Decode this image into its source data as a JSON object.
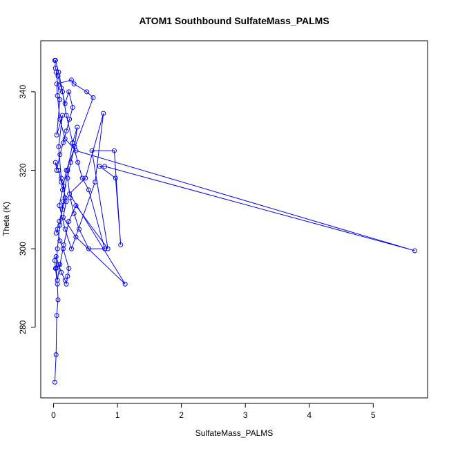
{
  "chart_data": {
    "type": "line",
    "title": "ATOM1 Southbound SulfateMass_PALMS",
    "xlabel": "SulfateMass_PALMS",
    "ylabel": "Theta (K)",
    "xlim": [
      -0.2,
      5.85
    ],
    "ylim": [
      262,
      353
    ],
    "x_ticks": [
      0,
      1,
      2,
      3,
      4,
      5
    ],
    "y_ticks": [
      280,
      300,
      320,
      340
    ],
    "x_tick_labels": [
      "0",
      "1",
      "2",
      "3",
      "4",
      "5"
    ],
    "y_tick_labels": [
      "280",
      "300",
      "320",
      "340"
    ],
    "series": [
      {
        "color": "#0000ff",
        "marker": "open-circle",
        "points": [
          [
            0.02,
            266
          ],
          [
            0.04,
            273
          ],
          [
            0.05,
            283
          ],
          [
            0.07,
            287
          ],
          [
            0.06,
            291
          ],
          [
            0.03,
            295
          ],
          [
            0.02,
            297
          ],
          [
            0.04,
            298
          ],
          [
            0.08,
            296
          ],
          [
            0.12,
            294
          ],
          [
            0.18,
            292
          ],
          [
            0.2,
            291
          ],
          [
            0.22,
            293
          ],
          [
            0.24,
            295
          ],
          [
            0.15,
            300
          ],
          [
            0.1,
            302
          ],
          [
            0.06,
            305
          ],
          [
            0.04,
            304
          ],
          [
            0.09,
            307
          ],
          [
            0.14,
            310
          ],
          [
            0.18,
            313
          ],
          [
            0.16,
            316
          ],
          [
            0.12,
            317
          ],
          [
            0.08,
            320
          ],
          [
            0.03,
            322
          ],
          [
            0.05,
            320
          ],
          [
            0.1,
            324
          ],
          [
            0.15,
            327
          ],
          [
            0.2,
            330
          ],
          [
            0.25,
            333
          ],
          [
            0.3,
            336
          ],
          [
            0.24,
            340
          ],
          [
            0.18,
            337
          ],
          [
            0.12,
            341
          ],
          [
            0.07,
            344
          ],
          [
            0.03,
            346
          ],
          [
            0.02,
            348
          ],
          [
            0.03,
            348
          ],
          [
            0.08,
            345
          ],
          [
            0.14,
            340
          ],
          [
            0.2,
            334
          ],
          [
            0.3,
            327
          ],
          [
            0.38,
            322
          ],
          [
            0.45,
            318
          ],
          [
            0.55,
            315
          ],
          [
            0.8,
            300
          ],
          [
            0.55,
            300
          ],
          [
            0.4,
            305
          ],
          [
            0.32,
            309
          ],
          [
            0.26,
            313
          ],
          [
            0.22,
            318
          ],
          [
            0.27,
            322
          ],
          [
            0.33,
            326
          ],
          [
            0.37,
            331
          ],
          [
            0.3,
            327
          ],
          [
            0.22,
            320
          ],
          [
            0.15,
            312
          ],
          [
            0.1,
            306
          ],
          [
            0.06,
            300
          ],
          [
            0.04,
            295
          ],
          [
            0.06,
            292
          ],
          [
            0.1,
            296
          ],
          [
            0.16,
            301
          ],
          [
            0.24,
            307
          ],
          [
            0.35,
            311
          ],
          [
            0.85,
            300
          ],
          [
            0.6,
            325
          ],
          [
            0.95,
            325
          ],
          [
            1.05,
            301
          ],
          [
            0.97,
            318
          ],
          [
            0.72,
            321
          ],
          [
            0.8,
            321
          ],
          [
            5.65,
            299.5
          ],
          [
            0.35,
            325
          ],
          [
            0.18,
            328
          ],
          [
            0.1,
            333
          ],
          [
            0.06,
            339
          ],
          [
            0.05,
            342
          ],
          [
            0.28,
            343
          ],
          [
            0.32,
            342
          ],
          [
            0.52,
            340
          ],
          [
            0.62,
            338.5
          ],
          [
            0.2,
            320
          ],
          [
            0.14,
            315
          ],
          [
            0.09,
            311
          ],
          [
            0.18,
            305
          ],
          [
            0.28,
            300
          ],
          [
            0.65,
            317
          ],
          [
            0.78,
            334.5
          ],
          [
            0.5,
            318
          ],
          [
            0.25,
            314
          ],
          [
            1.12,
            291
          ],
          [
            0.35,
            303
          ],
          [
            0.15,
            308
          ],
          [
            0.2,
            312
          ],
          [
            0.12,
            318
          ],
          [
            0.08,
            326
          ],
          [
            0.14,
            334
          ],
          [
            0.05,
            329
          ],
          [
            0.1,
            338
          ],
          [
            0.04,
            345
          ]
        ]
      }
    ]
  }
}
